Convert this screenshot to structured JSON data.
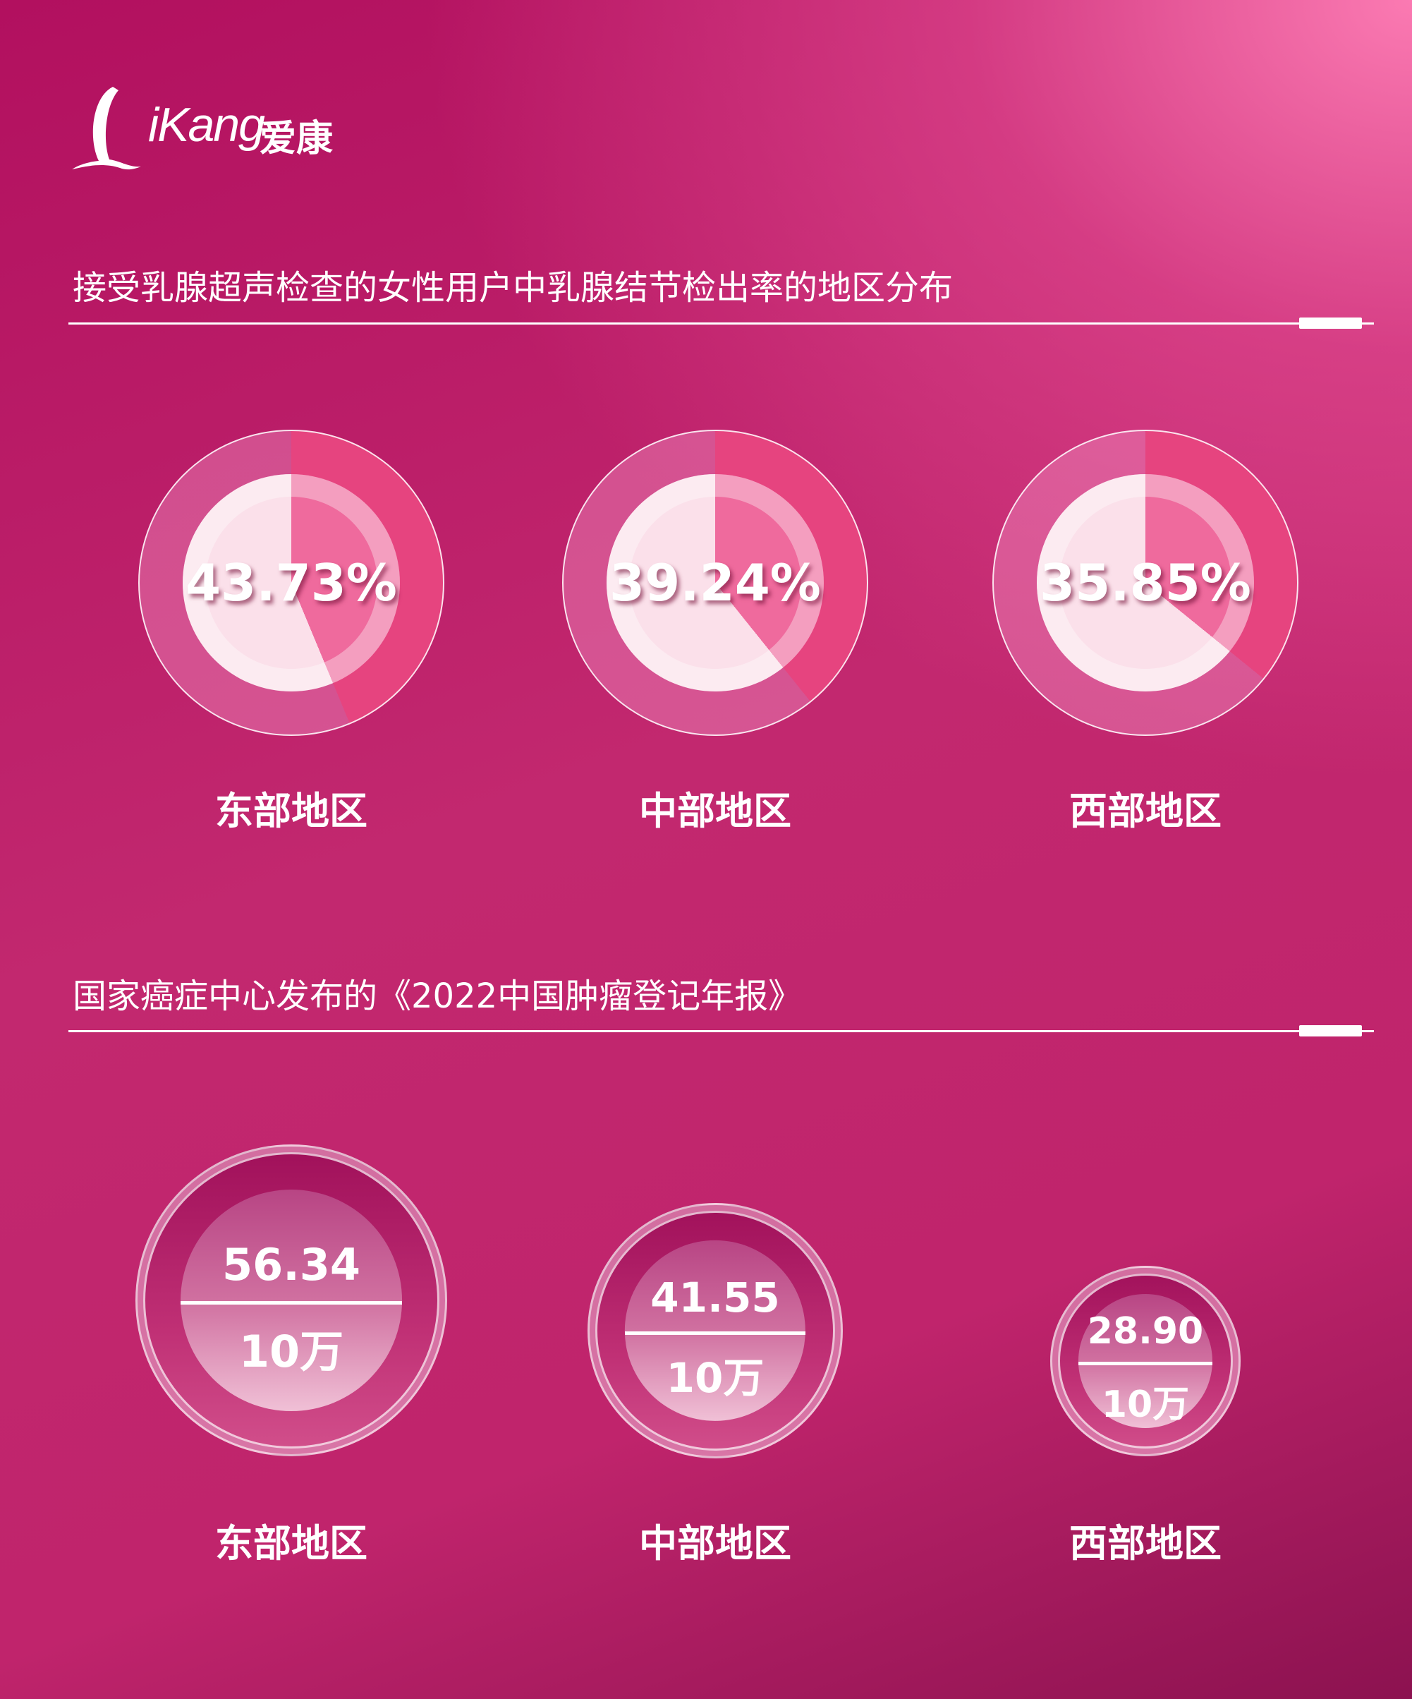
{
  "logo": {
    "text": "iKang",
    "text_cn": "爱康"
  },
  "section1": {
    "title": "接受乳腺超声检查的女性用户中乳腺结节检出率的地区分布",
    "items": [
      {
        "region": "东部地区",
        "value": "43.73%",
        "fraction": 0.4373
      },
      {
        "region": "中部地区",
        "value": "39.24%",
        "fraction": 0.3924
      },
      {
        "region": "西部地区",
        "value": "35.85%",
        "fraction": 0.3585
      }
    ]
  },
  "section2": {
    "title": "国家癌症中心发布的《2022中国肿瘤登记年报》",
    "items": [
      {
        "region": "东部地区",
        "value": "56.34",
        "unit": "10万"
      },
      {
        "region": "中部地区",
        "value": "41.55",
        "unit": "10万"
      },
      {
        "region": "西部地区",
        "value": "28.90",
        "unit": "10万"
      }
    ]
  },
  "colors": {
    "accent": "#e6447f",
    "background": "#c0246c"
  }
}
